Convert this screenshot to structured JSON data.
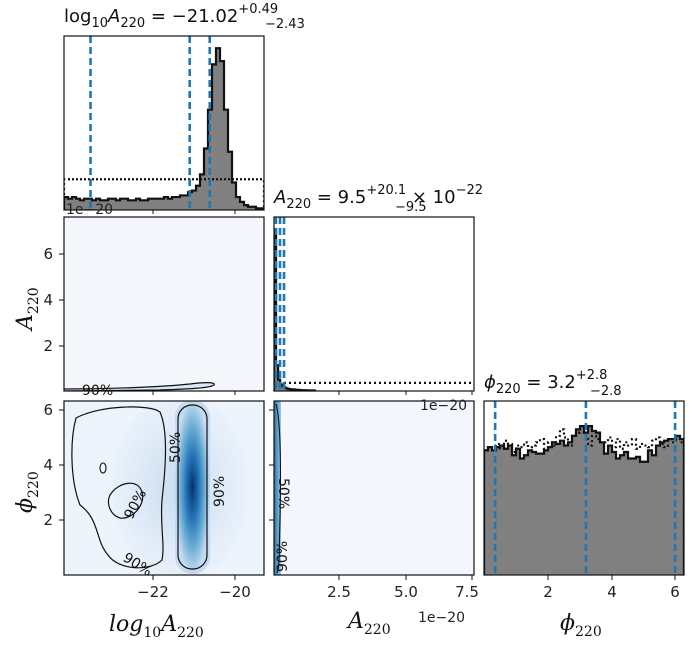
{
  "chart_data": {
    "type": "corner",
    "parameters": [
      "log10A220",
      "A220",
      "phi220"
    ],
    "titles": {
      "log10A220": {
        "name": "log",
        "name_sub": "10",
        "sym": "A",
        "sym_sub": "220",
        "eq": " = −21.02",
        "sup": "+0.49",
        "inf": "−2.43"
      },
      "A220": {
        "sym": "A",
        "sym_sub": "220",
        "eq": " = 9.5",
        "sup": "+20.1",
        "inf": "−9.5",
        "tail": " × 10",
        "tail_exp": "−22"
      },
      "phi220": {
        "sym": "ϕ",
        "sym_sub": "220",
        "eq": " = 3.2",
        "sup": "+2.8",
        "inf": "−2.8"
      }
    },
    "axis_labels": {
      "x": [
        {
          "name": "log",
          "name_sub": "10",
          "sym": "A",
          "sym_sub": "220"
        },
        {
          "sym": "A",
          "sym_sub": "220"
        },
        {
          "sym": "ϕ",
          "sym_sub": "220"
        }
      ],
      "y": [
        {
          "sym": "A",
          "sym_sub": "220"
        },
        {
          "sym": "ϕ",
          "sym_sub": "220"
        }
      ]
    },
    "ticks": {
      "log10A220": [
        "−22",
        "−20"
      ],
      "A220": [
        "2.5",
        "5.0",
        "7.5"
      ],
      "A220_y": [
        "2",
        "4",
        "6"
      ],
      "phi220": [
        "2",
        "4",
        "6"
      ],
      "phi220_y": [
        "2",
        "4",
        "6"
      ]
    },
    "offset_labels": {
      "diag1": "1e−20",
      "diag2": "1e−20",
      "bottom_x": "1e−20"
    },
    "contour_labels": [
      "90%",
      "90%",
      "90%",
      "50%",
      "90%",
      "50%",
      "90%"
    ],
    "ranges": {
      "log10A220": [
        -24.1,
        -19.2
      ],
      "A220": [
        0,
        7.5
      ],
      "phi220": [
        0,
        6.28
      ]
    },
    "quantile_lines": {
      "log10A220": [
        -23.45,
        -21.02,
        -20.53
      ],
      "A220": [
        0.0,
        0.095,
        0.296
      ],
      "phi220": [
        0.35,
        3.2,
        6.0
      ]
    },
    "hist_log10A220": {
      "edges_start": -24.1,
      "bin_width": 0.098,
      "posterior": [
        0.08,
        0.07,
        0.08,
        0.07,
        0.06,
        0.07,
        0.07,
        0.06,
        0.07,
        0.06,
        0.06,
        0.07,
        0.07,
        0.06,
        0.07,
        0.07,
        0.06,
        0.06,
        0.07,
        0.06,
        0.06,
        0.07,
        0.07,
        0.07,
        0.07,
        0.08,
        0.07,
        0.08,
        0.08,
        0.09,
        0.09,
        0.11,
        0.12,
        0.15,
        0.22,
        0.38,
        0.62,
        0.9,
        1.0,
        0.92,
        0.62,
        0.36,
        0.17,
        0.08,
        0.05,
        0.03,
        0.02,
        0.02,
        0.01,
        0.01
      ],
      "prior": [
        0.19,
        0.19,
        0.19,
        0.19,
        0.19,
        0.19,
        0.19,
        0.19,
        0.19,
        0.19,
        0.19,
        0.19,
        0.19,
        0.19,
        0.19,
        0.19,
        0.19,
        0.19,
        0.19,
        0.19,
        0.19,
        0.19,
        0.19,
        0.19,
        0.19,
        0.19,
        0.19,
        0.19,
        0.19,
        0.19,
        0.19,
        0.19,
        0.19,
        0.19,
        0.19,
        0.19,
        0.19,
        0.19,
        0.19,
        0.19,
        0.19,
        0.19,
        0.19,
        0.19,
        0.19,
        0.19,
        0.19,
        0.19,
        0.19,
        0.19
      ]
    },
    "hist_A220": {
      "bin_width": 0.0769,
      "posterior": [
        1.0,
        0.16,
        0.07,
        0.04,
        0.03,
        0.02,
        0.015,
        0.012,
        0.01,
        0.01,
        0.008,
        0.007,
        0.006,
        0.005,
        0.005,
        0.004,
        0.004,
        0.003,
        0.003,
        0.003
      ],
      "prior": 0.05
    },
    "hist_phi220": {
      "bin_width": 0.1256,
      "posterior": [
        0.77,
        0.79,
        0.77,
        0.79,
        0.8,
        0.78,
        0.8,
        0.74,
        0.78,
        0.72,
        0.74,
        0.77,
        0.76,
        0.75,
        0.75,
        0.77,
        0.79,
        0.82,
        0.81,
        0.83,
        0.8,
        0.82,
        0.86,
        0.9,
        0.92,
        0.88,
        0.92,
        0.89,
        0.88,
        0.82,
        0.75,
        0.8,
        0.76,
        0.72,
        0.74,
        0.76,
        0.72,
        0.72,
        0.73,
        0.7,
        0.7,
        0.77,
        0.74,
        0.8,
        0.82,
        0.83,
        0.84,
        0.84,
        0.86,
        0.84
      ],
      "prior": [
        0.77,
        0.79,
        0.8,
        0.81,
        0.78,
        0.83,
        0.81,
        0.76,
        0.8,
        0.79,
        0.82,
        0.79,
        0.8,
        0.82,
        0.84,
        0.78,
        0.82,
        0.8,
        0.86,
        0.9,
        0.85,
        0.8,
        0.86,
        0.88,
        0.91,
        0.86,
        0.8,
        0.86,
        0.84,
        0.82,
        0.82,
        0.85,
        0.79,
        0.84,
        0.78,
        0.82,
        0.8,
        0.84,
        0.78,
        0.81,
        0.8,
        0.79,
        0.83,
        0.85,
        0.81,
        0.79,
        0.84,
        0.82,
        0.84,
        0.82
      ]
    },
    "colors": {
      "hist_fill": "#808080",
      "quantile": "#1f77b4",
      "density_light": "#e9f1fb",
      "density_dark": "#08519c"
    }
  }
}
